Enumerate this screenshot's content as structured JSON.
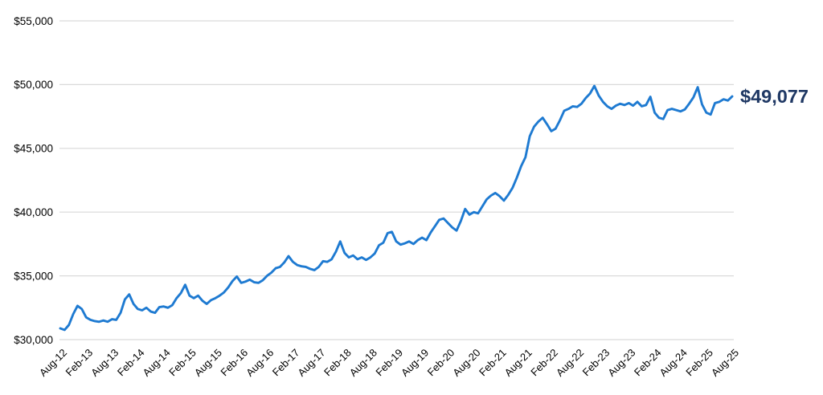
{
  "chart": {
    "end_label": "$49,077",
    "colors": {
      "line": "#1e7ad1",
      "end_label": "#1f3864",
      "gridline": "#d9d9d9",
      "axis_text": "#000000",
      "background": "#ffffff"
    }
  },
  "chart_data": {
    "type": "line",
    "title": "",
    "xlabel": "",
    "ylabel": "",
    "x_unit": "month",
    "x_start": "Aug-2012",
    "x_end": "Aug-2025",
    "x_tick_labels": [
      "Aug-12",
      "Feb-13",
      "Aug-13",
      "Feb-14",
      "Aug-14",
      "Feb-15",
      "Aug-15",
      "Feb-16",
      "Aug-16",
      "Feb-17",
      "Aug-17",
      "Feb-18",
      "Aug-18",
      "Feb-19",
      "Aug-19",
      "Feb-20",
      "Aug-20",
      "Feb-21",
      "Aug-21",
      "Feb-22",
      "Aug-22",
      "Feb-23",
      "Aug-23",
      "Feb-24",
      "Aug-24",
      "Feb-25",
      "Aug-25"
    ],
    "y_tick_labels": [
      "$30,000",
      "$35,000",
      "$40,000",
      "$45,000",
      "$50,000",
      "$55,000"
    ],
    "ylim": [
      30000,
      55000
    ],
    "y_tick_interval": 5000,
    "grid": "horizontal",
    "legend": "none",
    "end_label": "$49,077",
    "final_value": 49077,
    "values": [
      30880,
      30760,
      31150,
      32000,
      32650,
      32400,
      31750,
      31550,
      31450,
      31400,
      31500,
      31400,
      31600,
      31550,
      32100,
      33150,
      33550,
      32800,
      32400,
      32300,
      32500,
      32200,
      32100,
      32550,
      32600,
      32500,
      32700,
      33250,
      33650,
      34300,
      33450,
      33250,
      33450,
      33050,
      32800,
      33100,
      33250,
      33450,
      33700,
      34100,
      34600,
      34950,
      34450,
      34550,
      34700,
      34500,
      34450,
      34650,
      35000,
      35250,
      35600,
      35700,
      36050,
      36550,
      36100,
      35850,
      35750,
      35700,
      35550,
      35450,
      35700,
      36150,
      36100,
      36300,
      36900,
      37700,
      36800,
      36450,
      36600,
      36300,
      36450,
      36250,
      36450,
      36750,
      37400,
      37600,
      38350,
      38450,
      37700,
      37450,
      37550,
      37700,
      37500,
      37800,
      38000,
      37800,
      38400,
      38900,
      39400,
      39500,
      39150,
      38800,
      38550,
      39300,
      40250,
      39800,
      40000,
      39900,
      40450,
      41000,
      41300,
      41500,
      41250,
      40900,
      41350,
      41900,
      42700,
      43600,
      44300,
      45950,
      46700,
      47100,
      47400,
      46900,
      46350,
      46550,
      47200,
      47950,
      48100,
      48300,
      48250,
      48500,
      48950,
      49300,
      49900,
      49150,
      48650,
      48300,
      48100,
      48350,
      48500,
      48400,
      48550,
      48350,
      48650,
      48300,
      48400,
      49050,
      47800,
      47400,
      47300,
      48000,
      48100,
      48000,
      47900,
      48050,
      48500,
      49000,
      49800,
      48450,
      47800,
      47650,
      48550,
      48650,
      48850,
      48750,
      49077
    ]
  }
}
